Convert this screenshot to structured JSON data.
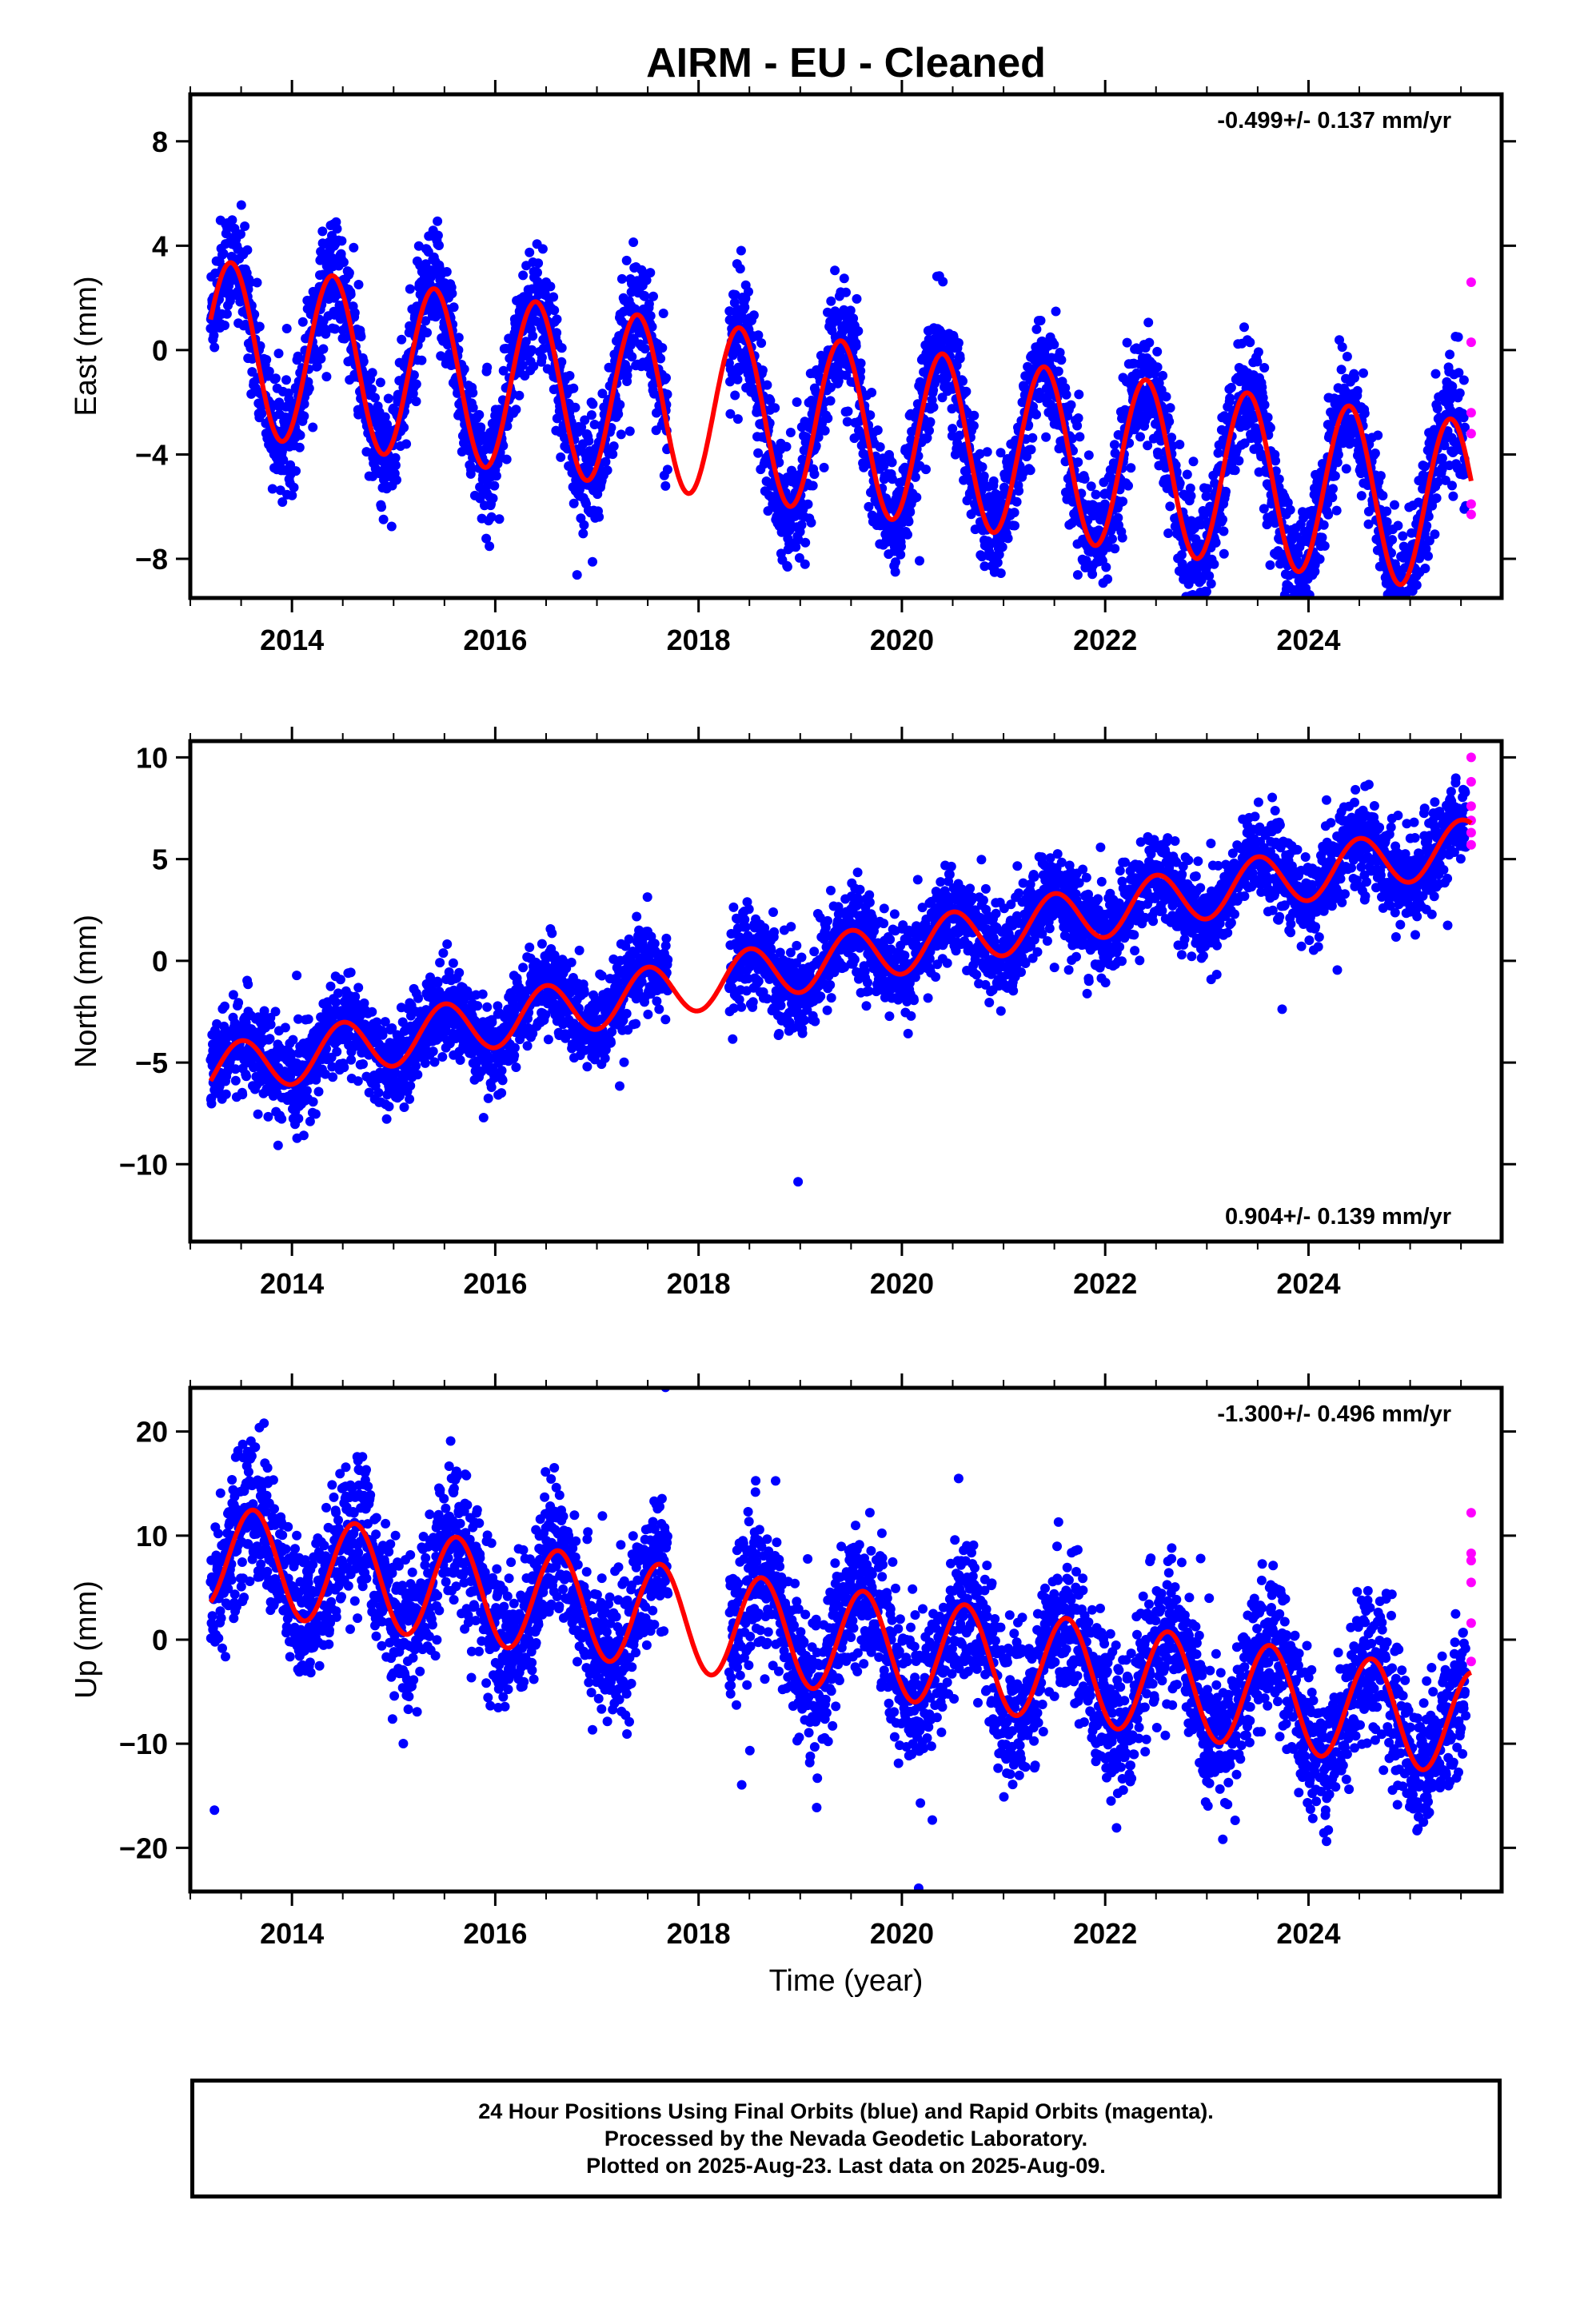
{
  "title": "AIRM  - EU - Cleaned",
  "xaxis_label": "Time (year)",
  "footer": {
    "line1": "24 Hour Positions Using Final Orbits (blue) and Rapid Orbits (magenta).",
    "line2": "Processed by the Nevada Geodetic Laboratory.",
    "line3": "Plotted on 2025-Aug-23. Last data on 2025-Aug-09."
  },
  "colors": {
    "final_orbits": "#0000ff",
    "rapid_orbits": "#ff00ff",
    "model_fit": "#ff0000"
  },
  "chart_data": [
    {
      "type": "scatter",
      "ylabel": "East (mm)",
      "xlabel": "",
      "rate_label": "-0.499+/- 0.137 mm/yr",
      "rate_position": "top-right",
      "xlim": [
        2013.0,
        2025.9
      ],
      "ylim": [
        -9.5,
        9.8
      ],
      "xticks": [
        2014,
        2016,
        2018,
        2020,
        2022,
        2024
      ],
      "yticks": [
        -8,
        -4,
        0,
        4,
        8
      ],
      "trend": {
        "start_year": 2013.2,
        "rate": -0.499,
        "offset": 0.15
      },
      "annual_amplitude": 3.3,
      "peak_phase": 0.4,
      "scatter_sd": 1.1,
      "data_gap": [
        2017.7,
        2018.3
      ],
      "series": [
        {
          "name": "Final Orbits (blue)",
          "x_range": [
            2013.2,
            2025.55
          ],
          "n_points": 4300
        },
        {
          "name": "Rapid Orbits (magenta)",
          "x": [
            2025.6,
            2025.6,
            2025.6,
            2025.6,
            2025.6,
            2025.6
          ],
          "y": [
            2.6,
            0.3,
            -2.4,
            -3.2,
            -5.9,
            -6.3
          ]
        }
      ]
    },
    {
      "type": "scatter",
      "ylabel": "North (mm)",
      "xlabel": "",
      "rate_label": "0.904+/- 0.139 mm/yr",
      "rate_position": "bottom-right",
      "xlim": [
        2013.0,
        2025.9
      ],
      "ylim": [
        -13.8,
        10.8
      ],
      "xticks": [
        2014,
        2016,
        2018,
        2020,
        2022,
        2024
      ],
      "yticks": [
        -10,
        -5,
        0,
        5,
        10
      ],
      "trend": {
        "start_year": 2013.2,
        "rate": 0.904,
        "offset": -5.5
      },
      "annual_amplitude": 1.3,
      "peak_phase": 0.5,
      "scatter_sd": 1.1,
      "data_gap": [
        2017.7,
        2018.3
      ],
      "series": [
        {
          "name": "Final Orbits (blue)",
          "x_range": [
            2013.2,
            2025.55
          ],
          "n_points": 4300
        },
        {
          "name": "Rapid Orbits (magenta)",
          "x": [
            2025.6,
            2025.6,
            2025.6,
            2025.6,
            2025.6,
            2025.6
          ],
          "y": [
            10.0,
            8.8,
            7.6,
            6.9,
            6.3,
            5.7
          ]
        }
      ]
    },
    {
      "type": "scatter",
      "ylabel": "Up (mm)",
      "xlabel": "Time (year)",
      "rate_label": "-1.300+/- 0.496 mm/yr",
      "rate_position": "top-right",
      "xlim": [
        2013.0,
        2025.9
      ],
      "ylim": [
        -24.2,
        24.2
      ],
      "xticks": [
        2014,
        2016,
        2018,
        2020,
        2022,
        2024
      ],
      "yticks": [
        -20,
        -10,
        0,
        10,
        20
      ],
      "trend": {
        "start_year": 2013.2,
        "rate": -1.3,
        "offset": 8.0
      },
      "annual_amplitude": 5.0,
      "peak_phase": 0.62,
      "scatter_sd": 3.4,
      "data_gap": [
        2017.7,
        2018.3
      ],
      "series": [
        {
          "name": "Final Orbits (blue)",
          "x_range": [
            2013.2,
            2025.55
          ],
          "n_points": 4300
        },
        {
          "name": "Rapid Orbits (magenta)",
          "x": [
            2025.6,
            2025.6,
            2025.6,
            2025.6,
            2025.6,
            2025.6
          ],
          "y": [
            12.2,
            8.3,
            7.6,
            5.5,
            1.6,
            -2.1
          ]
        }
      ]
    }
  ]
}
